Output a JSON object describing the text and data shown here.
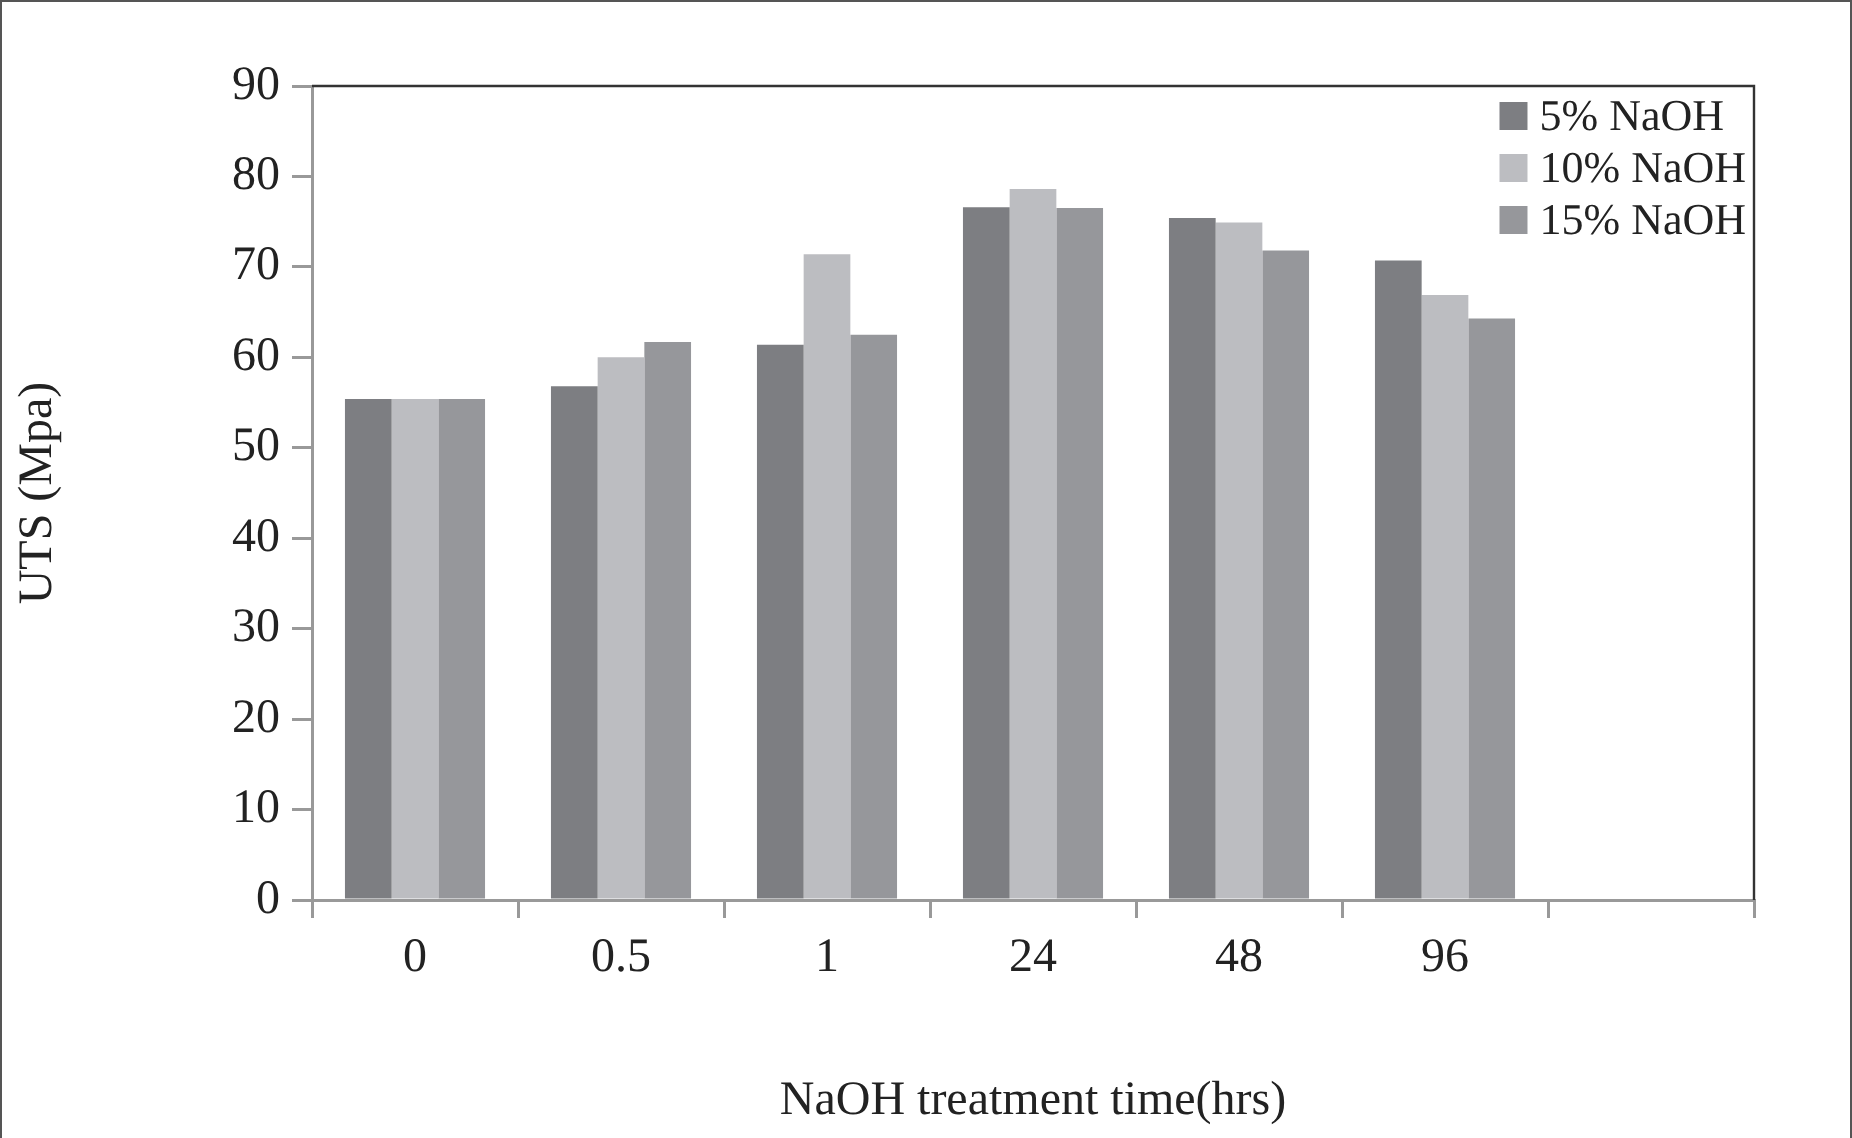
{
  "chart_data": {
    "type": "bar",
    "xlabel": "NaOH treatment time(hrs)",
    "ylabel": "UTS (Mpa)",
    "categories": [
      "0",
      "0.5",
      "1",
      "24",
      "48",
      "96",
      null
    ],
    "series": [
      {
        "name": "5% NaOH",
        "color": "#7d7e82",
        "values": [
          55.4,
          56.8,
          61.4,
          76.6,
          75.4,
          70.7,
          null
        ]
      },
      {
        "name": "10% NaOH",
        "color": "#bcbdc1",
        "values": [
          55.4,
          60.0,
          71.4,
          78.6,
          74.9,
          66.9,
          null
        ]
      },
      {
        "name": "15% NaOH",
        "color": "#96979b",
        "values": [
          55.4,
          61.7,
          62.5,
          76.5,
          71.8,
          64.3,
          null
        ]
      }
    ],
    "ylim": [
      0,
      90
    ],
    "yticks": [
      0,
      10,
      20,
      30,
      40,
      50,
      60,
      70,
      80,
      90
    ],
    "grid": false,
    "legend": "top right"
  }
}
